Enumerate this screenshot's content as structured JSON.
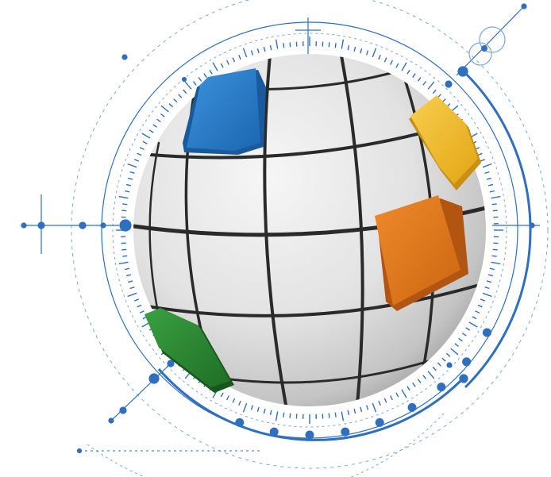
{
  "image": {
    "subject": "globe-illustration",
    "colors": {
      "background": "#ffffff",
      "line_blue": "#2f6fc0",
      "line_blue_light": "#7aa8dc",
      "sphere_light": "#efefef",
      "sphere_mid": "#d4d4d4",
      "sphere_dark": "#9a9a9a",
      "seam": "#2a2a2a",
      "tile_blue": "#2a7fc9",
      "tile_yellow": "#f2bd2c",
      "tile_orange": "#e2781e",
      "tile_green": "#2e8a36"
    },
    "tiles": [
      {
        "name": "blue-tile",
        "color_key": "tile_blue"
      },
      {
        "name": "yellow-tile",
        "color_key": "tile_yellow"
      },
      {
        "name": "orange-tile",
        "color_key": "tile_orange"
      },
      {
        "name": "green-tile",
        "color_key": "tile_green"
      }
    ]
  }
}
